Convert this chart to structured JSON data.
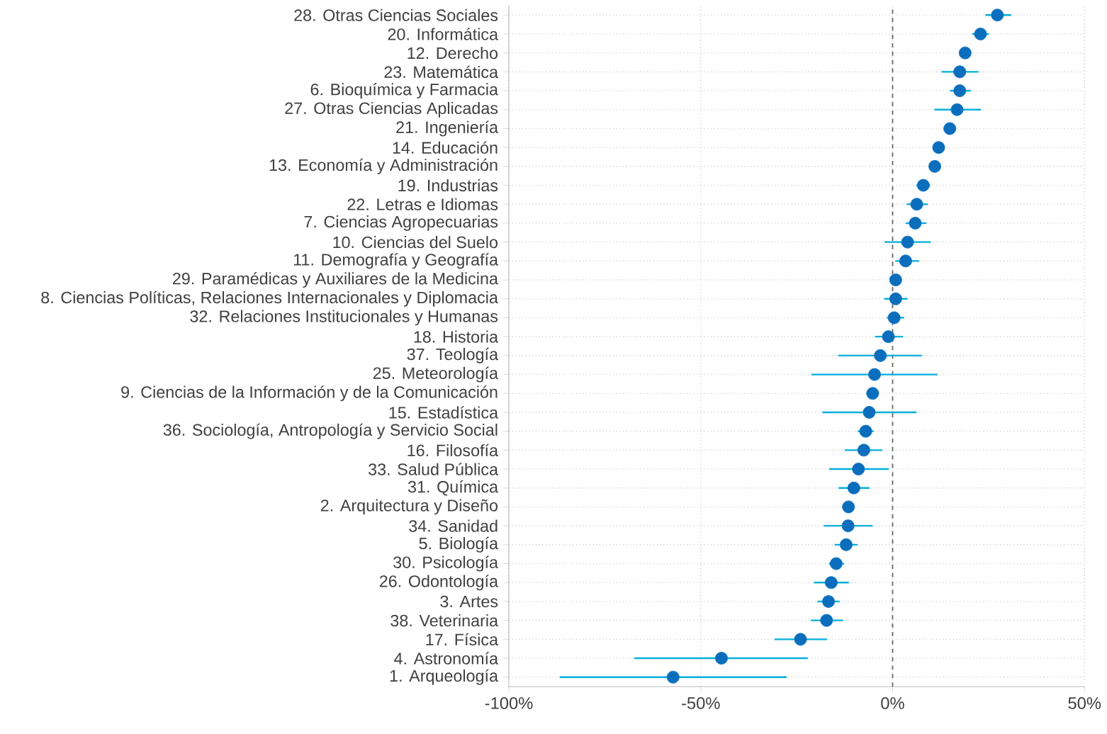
{
  "chart_data": {
    "type": "scatter",
    "orientation": "horizontal",
    "marker": "circle",
    "grid": true,
    "categories": [
      "28. Otras Ciencias Sociales",
      "20. Informática",
      "12. Derecho",
      "23. Matemática",
      "6. Bioquímica y Farmacia",
      "27. Otras Ciencias Aplicadas",
      "21. Ingeniería",
      "14. Educación",
      "13. Economía y Administración",
      "19. Industrias",
      "22. Letras e Idiomas",
      "7. Ciencias Agropecuarias",
      "10. Ciencias del Suelo",
      "11. Demografía y Geografía",
      "29. Paramédicas y Auxiliares de la Medicina",
      "8. Ciencias Políticas, Relaciones Internacionales y Diplomacia",
      "32. Relaciones Institucionales y Humanas",
      "18. Historia",
      "37. Teología",
      "25. Meteorología",
      "9. Ciencias de la Información y de la Comunicación",
      "15. Estadística",
      "36. Sociología, Antropología y Servicio Social",
      "16. Filosofía",
      "33. Salud Pública",
      "31. Química",
      "2. Arquitectura y Diseño",
      "34. Sanidad",
      "5. Biología",
      "30. Psicología",
      "26. Odontología",
      "3. Artes",
      "38. Veterinaria",
      "17. Física",
      "4. Astronomía",
      "1. Arqueología"
    ],
    "series": [
      {
        "color": "#0a6ebd",
        "values": [
          27.3,
          22.9,
          18.9,
          17.5,
          17.5,
          16.8,
          14.9,
          12.0,
          11.0,
          8.0,
          6.3,
          5.9,
          3.9,
          3.4,
          0.8,
          0.8,
          0.4,
          -1.1,
          -3.2,
          -4.7,
          -5.2,
          -6.1,
          -7.0,
          -7.5,
          -8.9,
          -10.1,
          -11.5,
          -11.6,
          -12.1,
          -14.7,
          -16.0,
          -16.7,
          -17.2,
          -24.0,
          -44.6,
          -57.2
        ],
        "errors": [
          [
            24.2,
            30.9
          ],
          [
            20.7,
            25.1
          ],
          null,
          [
            12.7,
            22.4
          ],
          [
            14.9,
            20.4
          ],
          [
            10.9,
            23.0
          ],
          null,
          null,
          null,
          [
            6.2,
            9.8
          ],
          [
            3.7,
            9.2
          ],
          [
            3.4,
            8.8
          ],
          [
            -2.1,
            10.0
          ],
          [
            0.7,
            6.9
          ],
          null,
          [
            -2.2,
            3.9
          ],
          [
            -1.5,
            3.0
          ],
          [
            -4.6,
            2.7
          ],
          [
            -14.2,
            7.6
          ],
          [
            -21.2,
            11.7
          ],
          null,
          [
            -18.3,
            6.2
          ],
          [
            -9.1,
            -4.9
          ],
          [
            -12.5,
            -2.7
          ],
          [
            -16.5,
            -1.0
          ],
          [
            -14.1,
            -6.0
          ],
          null,
          [
            -18.0,
            -5.2
          ],
          [
            -15.1,
            -9.1
          ],
          [
            -16.6,
            -12.6
          ],
          [
            -20.5,
            -11.4
          ],
          [
            -19.6,
            -13.8
          ],
          [
            -21.3,
            -12.9
          ],
          [
            -30.8,
            -17.1
          ],
          [
            -67.3,
            -22.1
          ],
          [
            -86.7,
            -27.6
          ]
        ]
      }
    ],
    "xlim": [
      -100,
      50
    ],
    "xticks": [
      {
        "value": -100,
        "label": "-100%"
      },
      {
        "value": -50,
        "label": "-50%"
      },
      {
        "value": 0,
        "label": "0%"
      },
      {
        "value": 50,
        "label": "50%"
      }
    ],
    "ref_lines": [
      {
        "axis": "x",
        "value": 0,
        "color": "#666666",
        "line_style": "dashed"
      }
    ]
  }
}
